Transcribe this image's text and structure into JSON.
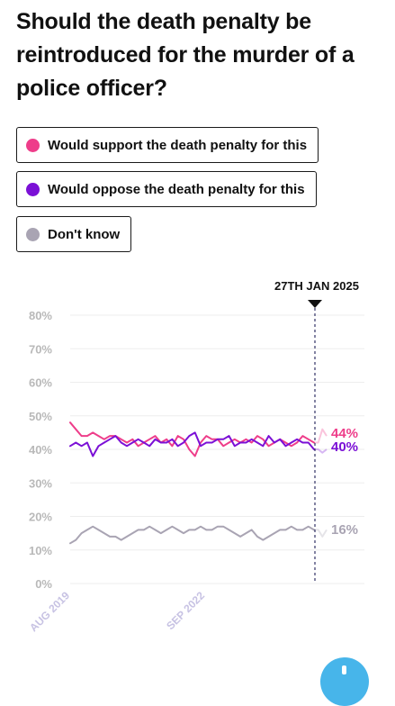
{
  "title": "Should the death penalty be reintroduced for the murder of a police officer?",
  "legend": [
    {
      "label": "Would support the death penalty for this",
      "color": "#ee3d8a"
    },
    {
      "label": "Would oppose the death penalty for this",
      "color": "#7b10d6"
    },
    {
      "label": "Don't know",
      "color": "#a9a4b3"
    }
  ],
  "chart_data": {
    "type": "line",
    "marker_label": "27TH JAN 2025",
    "x_tick_labels": [
      "AUG 2019",
      "SEP 2022"
    ],
    "y_tick_labels": [
      "80%",
      "70%",
      "60%",
      "50%",
      "40%",
      "30%",
      "20%",
      "10%",
      "0%"
    ],
    "ylim": [
      0,
      80
    ],
    "grid": true,
    "series": [
      {
        "name": "Would support the death penalty for this",
        "color": "#ee3d8a",
        "end_label": "44%",
        "values": [
          48,
          46,
          44,
          44,
          45,
          44,
          43,
          44,
          44,
          43,
          42,
          43,
          41,
          42,
          43,
          44,
          42,
          43,
          41,
          44,
          43,
          40,
          38,
          42,
          44,
          43,
          43,
          41,
          42,
          43,
          42,
          43,
          42,
          44,
          43,
          41,
          42,
          43,
          42,
          41,
          42,
          44,
          43,
          42
        ]
      },
      {
        "name": "Would oppose the death penalty for this",
        "color": "#7b10d6",
        "end_label": "40%",
        "values": [
          41,
          42,
          41,
          42,
          38,
          41,
          42,
          43,
          44,
          42,
          41,
          42,
          43,
          42,
          41,
          43,
          42,
          42,
          43,
          41,
          42,
          44,
          45,
          41,
          42,
          42,
          43,
          43,
          44,
          41,
          42,
          42,
          43,
          42,
          41,
          44,
          42,
          43,
          41,
          42,
          43,
          42,
          42,
          40
        ]
      },
      {
        "name": "Don't know",
        "color": "#a9a4b3",
        "end_label": "16%",
        "values": [
          12,
          13,
          15,
          16,
          17,
          16,
          15,
          14,
          14,
          13,
          14,
          15,
          16,
          16,
          17,
          16,
          15,
          16,
          17,
          16,
          15,
          16,
          16,
          17,
          16,
          16,
          17,
          17,
          16,
          15,
          14,
          15,
          16,
          14,
          13,
          14,
          15,
          16,
          16,
          17,
          16,
          16,
          17,
          16
        ]
      }
    ],
    "faded_tail": [
      {
        "series": "Would support the death penalty for this",
        "values": [
          42,
          46,
          44
        ]
      },
      {
        "series": "Would oppose the death penalty for this",
        "values": [
          40,
          39,
          40
        ]
      },
      {
        "series": "Don't know",
        "values": [
          16,
          14,
          16
        ]
      }
    ]
  }
}
